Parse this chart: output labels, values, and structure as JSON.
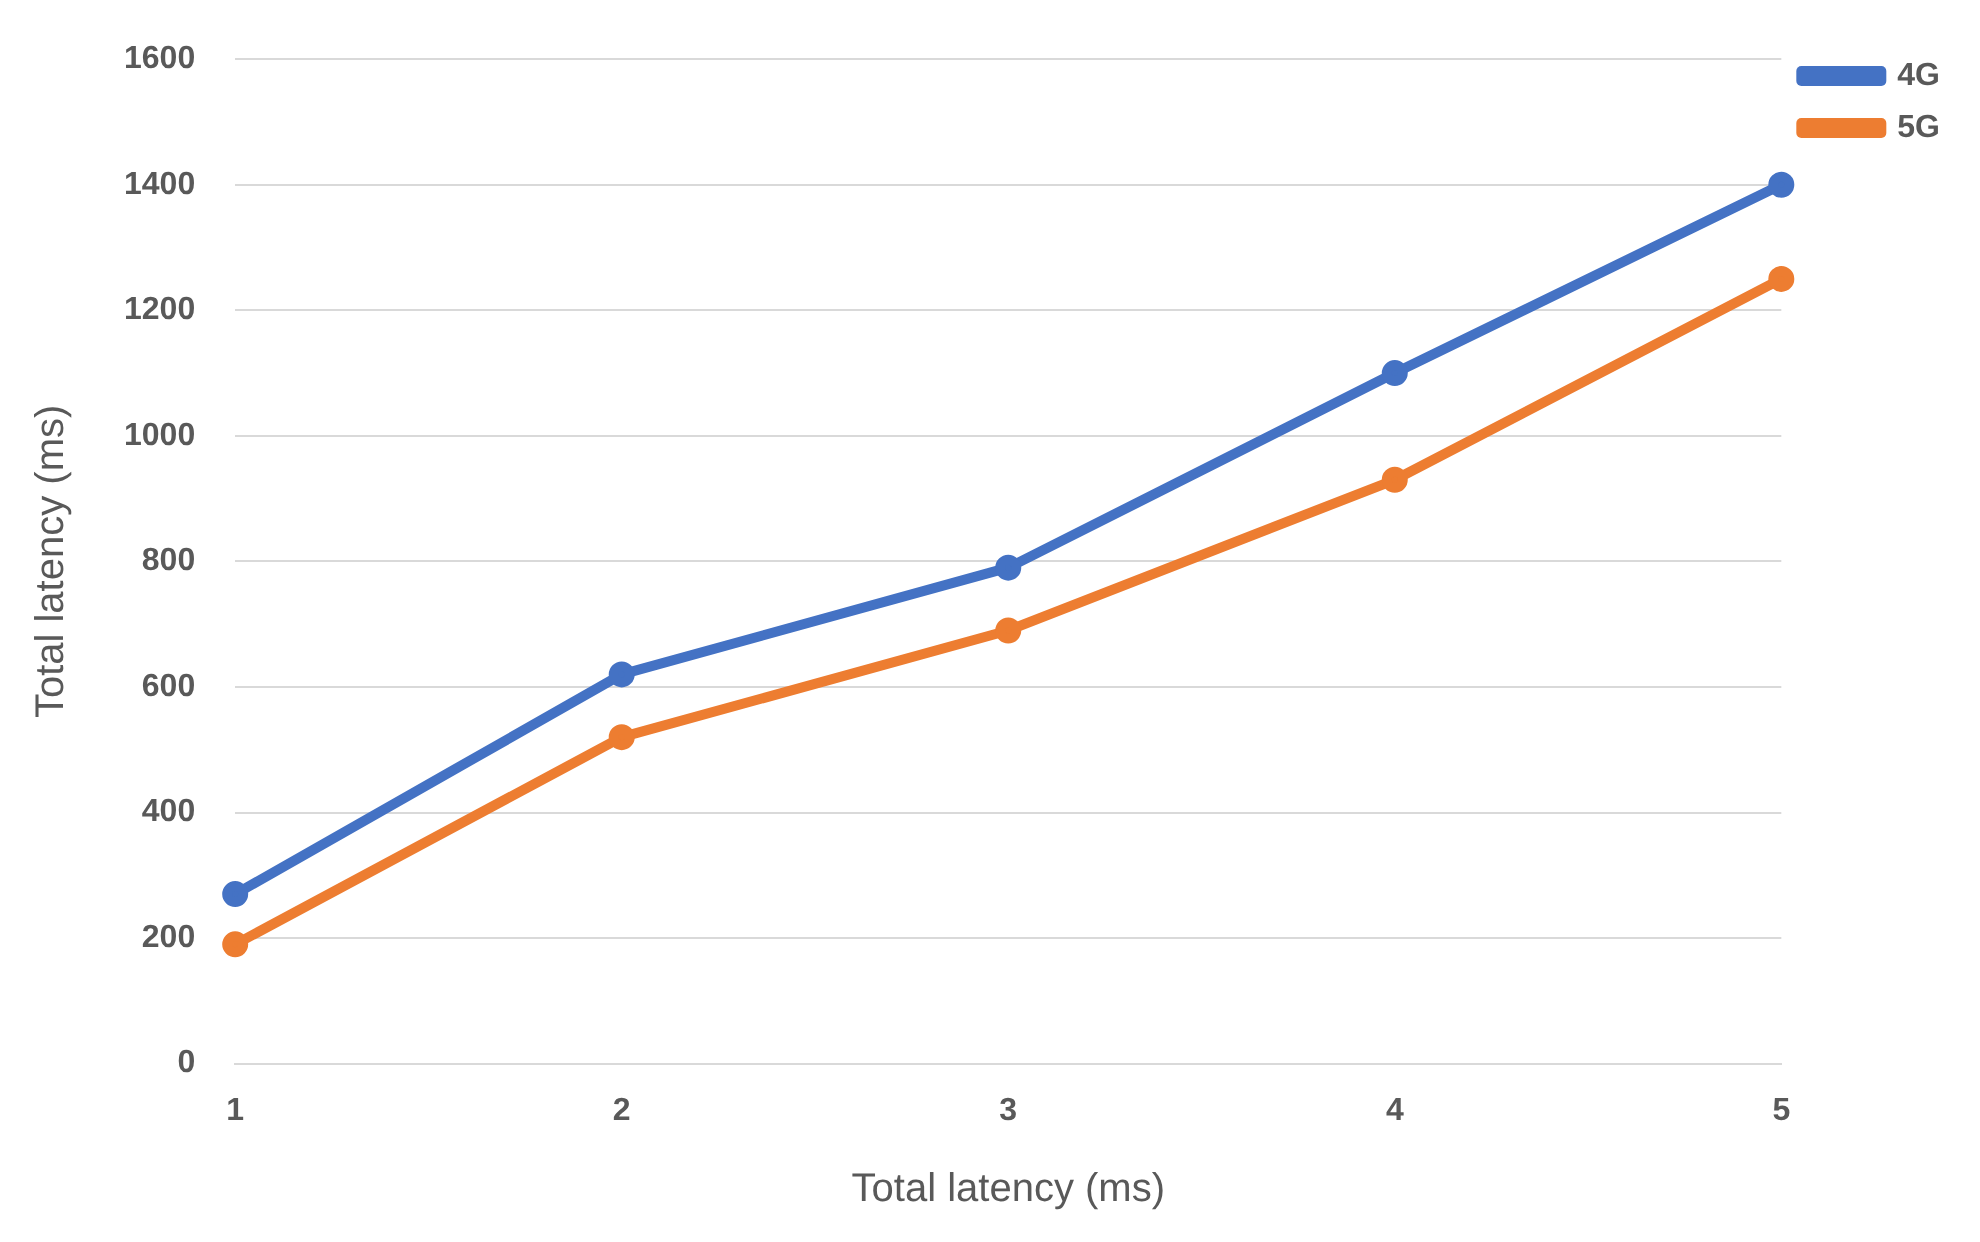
{
  "chart_data": {
    "type": "line",
    "xlabel": "Total latency (ms)",
    "ylabel": "Total latency (ms)",
    "categories": [
      "1",
      "2",
      "3",
      "4",
      "5"
    ],
    "series": [
      {
        "name": "4G",
        "color": "#4472c4",
        "values": [
          270,
          620,
          790,
          1100,
          1400
        ]
      },
      {
        "name": "5G",
        "color": "#ed7d31",
        "values": [
          190,
          520,
          690,
          930,
          1250
        ]
      }
    ],
    "ylim": [
      0,
      1600
    ],
    "yticks": [
      0,
      200,
      400,
      600,
      800,
      1000,
      1200,
      1400,
      1600
    ],
    "grid": "y",
    "legend": "top right",
    "marker": "circle",
    "line_style": "solid"
  }
}
